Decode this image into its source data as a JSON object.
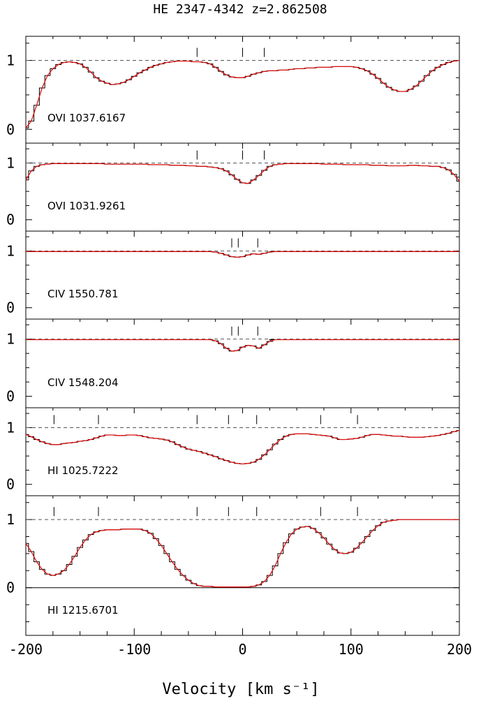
{
  "chart_data": {
    "type": "line",
    "title": "HE 2347-4342 z=2.862508",
    "xlabel": "Velocity [km s⁻¹]",
    "xlim": [
      -200,
      200
    ],
    "xticks": [
      -200,
      -100,
      0,
      100,
      200
    ],
    "continuum_level": 1,
    "colors": {
      "data": "#000000",
      "model": "#dd1111",
      "continuum": "#555555"
    },
    "panels": [
      {
        "label": "OVI 1037.6167",
        "ylim": [
          -0.2,
          1.35
        ],
        "yticks": [
          0,
          1
        ],
        "component_marks": [
          -42,
          0,
          20
        ],
        "x": [
          -200,
          -195,
          -190,
          -185,
          -180,
          -175,
          -170,
          -165,
          -160,
          -155,
          -150,
          -145,
          -140,
          -135,
          -130,
          -125,
          -120,
          -115,
          -110,
          -105,
          -100,
          -95,
          -90,
          -85,
          -80,
          -75,
          -70,
          -65,
          -60,
          -55,
          -50,
          -45,
          -40,
          -35,
          -30,
          -25,
          -20,
          -15,
          -10,
          -5,
          0,
          5,
          10,
          15,
          20,
          25,
          30,
          35,
          40,
          45,
          50,
          55,
          60,
          65,
          70,
          75,
          80,
          85,
          90,
          95,
          100,
          105,
          110,
          115,
          120,
          125,
          130,
          135,
          140,
          145,
          150,
          155,
          160,
          165,
          170,
          175,
          180,
          185,
          190,
          195,
          200
        ],
        "y": [
          0.02,
          0.12,
          0.35,
          0.6,
          0.78,
          0.88,
          0.94,
          0.97,
          0.98,
          0.97,
          0.95,
          0.9,
          0.83,
          0.75,
          0.7,
          0.67,
          0.65,
          0.66,
          0.68,
          0.72,
          0.77,
          0.82,
          0.86,
          0.9,
          0.93,
          0.95,
          0.97,
          0.98,
          0.99,
          0.99,
          0.99,
          0.98,
          0.98,
          0.97,
          0.95,
          0.9,
          0.84,
          0.79,
          0.76,
          0.75,
          0.75,
          0.77,
          0.8,
          0.82,
          0.84,
          0.85,
          0.85,
          0.86,
          0.86,
          0.87,
          0.88,
          0.88,
          0.89,
          0.89,
          0.9,
          0.9,
          0.9,
          0.91,
          0.91,
          0.91,
          0.91,
          0.9,
          0.88,
          0.85,
          0.8,
          0.74,
          0.67,
          0.61,
          0.57,
          0.55,
          0.55,
          0.58,
          0.63,
          0.7,
          0.78,
          0.85,
          0.9,
          0.94,
          0.97,
          0.99,
          1.0
        ]
      },
      {
        "label": "OVI 1031.9261",
        "ylim": [
          -0.2,
          1.35
        ],
        "yticks": [
          0,
          1
        ],
        "component_marks": [
          -42,
          0,
          20
        ],
        "x": [
          -200,
          -195,
          -190,
          -185,
          -180,
          -175,
          -170,
          -165,
          -160,
          -155,
          -150,
          -145,
          -140,
          -135,
          -130,
          -125,
          -120,
          -115,
          -110,
          -105,
          -100,
          -95,
          -90,
          -85,
          -80,
          -75,
          -70,
          -65,
          -60,
          -55,
          -50,
          -45,
          -40,
          -35,
          -30,
          -25,
          -20,
          -15,
          -10,
          -5,
          0,
          5,
          10,
          15,
          20,
          25,
          30,
          35,
          40,
          45,
          50,
          55,
          60,
          65,
          70,
          75,
          80,
          85,
          90,
          95,
          100,
          105,
          110,
          115,
          120,
          125,
          130,
          135,
          140,
          145,
          150,
          155,
          160,
          165,
          170,
          175,
          180,
          185,
          190,
          195,
          200
        ],
        "y": [
          0.7,
          0.86,
          0.94,
          0.97,
          0.98,
          0.99,
          0.99,
          0.99,
          0.99,
          0.99,
          0.99,
          0.99,
          0.99,
          0.99,
          0.99,
          0.98,
          0.98,
          0.98,
          0.98,
          0.98,
          0.98,
          0.98,
          0.98,
          0.97,
          0.97,
          0.97,
          0.97,
          0.96,
          0.96,
          0.96,
          0.95,
          0.95,
          0.94,
          0.94,
          0.93,
          0.92,
          0.9,
          0.86,
          0.79,
          0.71,
          0.65,
          0.64,
          0.7,
          0.78,
          0.87,
          0.94,
          0.97,
          0.98,
          0.99,
          0.99,
          0.99,
          0.99,
          0.99,
          0.99,
          0.99,
          0.98,
          0.98,
          0.98,
          0.98,
          0.97,
          0.97,
          0.97,
          0.97,
          0.97,
          0.96,
          0.96,
          0.96,
          0.95,
          0.95,
          0.95,
          0.95,
          0.96,
          0.96,
          0.95,
          0.95,
          0.94,
          0.94,
          0.92,
          0.88,
          0.8,
          0.68
        ]
      },
      {
        "label": "CIV 1550.781",
        "ylim": [
          -0.2,
          1.35
        ],
        "yticks": [
          0,
          1
        ],
        "component_marks": [
          -10,
          -4,
          14
        ],
        "x": [
          -200,
          -190,
          -180,
          -170,
          -160,
          -150,
          -140,
          -130,
          -120,
          -110,
          -100,
          -90,
          -80,
          -70,
          -60,
          -50,
          -40,
          -30,
          -25,
          -20,
          -15,
          -10,
          -5,
          0,
          5,
          10,
          15,
          20,
          25,
          30,
          40,
          50,
          60,
          70,
          80,
          90,
          100,
          110,
          120,
          130,
          140,
          150,
          160,
          170,
          180,
          190,
          200
        ],
        "y": [
          0.99,
          0.99,
          0.99,
          0.99,
          0.99,
          0.99,
          0.99,
          0.99,
          0.99,
          0.99,
          0.99,
          0.99,
          0.99,
          0.99,
          0.99,
          0.99,
          0.99,
          0.99,
          0.98,
          0.96,
          0.93,
          0.9,
          0.89,
          0.9,
          0.93,
          0.95,
          0.94,
          0.96,
          0.98,
          0.99,
          0.99,
          0.99,
          0.99,
          0.99,
          0.99,
          0.99,
          0.99,
          0.99,
          0.99,
          0.99,
          0.99,
          0.99,
          0.99,
          0.99,
          0.99,
          0.99,
          0.99
        ]
      },
      {
        "label": "CIV 1548.204",
        "ylim": [
          -0.2,
          1.35
        ],
        "yticks": [
          0,
          1
        ],
        "component_marks": [
          -10,
          -4,
          14
        ],
        "x": [
          -200,
          -190,
          -180,
          -170,
          -160,
          -150,
          -140,
          -130,
          -120,
          -110,
          -100,
          -90,
          -80,
          -70,
          -60,
          -50,
          -40,
          -30,
          -25,
          -20,
          -15,
          -10,
          -5,
          0,
          5,
          10,
          15,
          20,
          25,
          30,
          40,
          50,
          60,
          70,
          80,
          90,
          100,
          110,
          120,
          130,
          140,
          150,
          160,
          170,
          180,
          190,
          200
        ],
        "y": [
          0.99,
          0.99,
          0.99,
          0.99,
          0.99,
          0.99,
          0.99,
          0.99,
          0.99,
          0.99,
          0.99,
          0.99,
          0.99,
          0.99,
          0.99,
          0.99,
          0.99,
          0.99,
          0.97,
          0.92,
          0.84,
          0.79,
          0.8,
          0.86,
          0.89,
          0.88,
          0.84,
          0.9,
          0.96,
          0.99,
          0.99,
          0.99,
          0.99,
          0.99,
          0.99,
          0.99,
          0.99,
          0.99,
          0.99,
          0.99,
          0.99,
          0.99,
          0.99,
          0.99,
          0.99,
          0.99,
          0.99
        ]
      },
      {
        "label": "HI 1025.7222",
        "ylim": [
          -0.2,
          1.35
        ],
        "yticks": [
          0,
          1
        ],
        "component_marks": [
          -174,
          -133,
          -42,
          -13,
          13,
          72,
          106
        ],
        "x": [
          -200,
          -195,
          -190,
          -185,
          -180,
          -175,
          -170,
          -165,
          -160,
          -155,
          -150,
          -145,
          -140,
          -135,
          -130,
          -125,
          -120,
          -115,
          -110,
          -105,
          -100,
          -95,
          -90,
          -85,
          -80,
          -75,
          -70,
          -65,
          -60,
          -55,
          -50,
          -45,
          -40,
          -35,
          -30,
          -25,
          -20,
          -15,
          -10,
          -5,
          0,
          5,
          10,
          15,
          20,
          25,
          30,
          35,
          40,
          45,
          50,
          55,
          60,
          65,
          70,
          75,
          80,
          85,
          90,
          95,
          100,
          105,
          110,
          115,
          120,
          125,
          130,
          135,
          140,
          145,
          150,
          155,
          160,
          165,
          170,
          175,
          180,
          185,
          190,
          195,
          200
        ],
        "y": [
          0.88,
          0.84,
          0.79,
          0.75,
          0.72,
          0.7,
          0.7,
          0.72,
          0.73,
          0.74,
          0.76,
          0.77,
          0.79,
          0.82,
          0.85,
          0.87,
          0.87,
          0.86,
          0.86,
          0.87,
          0.87,
          0.86,
          0.84,
          0.82,
          0.81,
          0.8,
          0.78,
          0.75,
          0.7,
          0.66,
          0.62,
          0.6,
          0.58,
          0.55,
          0.52,
          0.49,
          0.45,
          0.42,
          0.39,
          0.37,
          0.36,
          0.37,
          0.39,
          0.44,
          0.52,
          0.61,
          0.71,
          0.79,
          0.85,
          0.88,
          0.89,
          0.89,
          0.89,
          0.88,
          0.87,
          0.86,
          0.85,
          0.82,
          0.79,
          0.79,
          0.8,
          0.81,
          0.83,
          0.86,
          0.88,
          0.88,
          0.87,
          0.86,
          0.85,
          0.85,
          0.84,
          0.83,
          0.83,
          0.83,
          0.84,
          0.85,
          0.86,
          0.88,
          0.9,
          0.93,
          0.95
        ]
      },
      {
        "label": "HI 1215.6701",
        "ylim": [
          -0.7,
          1.35
        ],
        "yticks": [
          0,
          1
        ],
        "component_marks": [
          -174,
          -133,
          -42,
          -13,
          13,
          72,
          106
        ],
        "x": [
          -200,
          -195,
          -190,
          -185,
          -180,
          -175,
          -170,
          -165,
          -160,
          -155,
          -150,
          -145,
          -140,
          -135,
          -130,
          -125,
          -120,
          -115,
          -110,
          -105,
          -100,
          -95,
          -90,
          -85,
          -80,
          -75,
          -70,
          -65,
          -60,
          -55,
          -50,
          -45,
          -40,
          -35,
          -30,
          -25,
          -20,
          -15,
          -10,
          -5,
          0,
          5,
          10,
          15,
          20,
          25,
          30,
          35,
          40,
          45,
          50,
          55,
          60,
          65,
          70,
          75,
          80,
          85,
          90,
          95,
          100,
          105,
          110,
          115,
          120,
          125,
          130,
          135,
          140,
          145,
          150,
          155,
          160,
          165,
          170,
          175,
          180,
          185,
          190,
          195,
          200
        ],
        "y": [
          0.65,
          0.53,
          0.38,
          0.27,
          0.2,
          0.18,
          0.2,
          0.25,
          0.34,
          0.46,
          0.59,
          0.7,
          0.78,
          0.82,
          0.84,
          0.85,
          0.85,
          0.85,
          0.86,
          0.86,
          0.86,
          0.86,
          0.84,
          0.8,
          0.72,
          0.62,
          0.5,
          0.38,
          0.27,
          0.18,
          0.11,
          0.06,
          0.03,
          0.02,
          0.02,
          0.01,
          0.01,
          0.01,
          0.01,
          0.01,
          0.01,
          0.01,
          0.02,
          0.04,
          0.09,
          0.18,
          0.32,
          0.5,
          0.66,
          0.79,
          0.86,
          0.89,
          0.9,
          0.87,
          0.81,
          0.73,
          0.64,
          0.56,
          0.51,
          0.5,
          0.52,
          0.58,
          0.66,
          0.75,
          0.84,
          0.91,
          0.96,
          0.98,
          0.99,
          1.0,
          1.0,
          1.0,
          1.0,
          1.0,
          1.0,
          1.0,
          1.0,
          1.0,
          1.0,
          1.0,
          1.0
        ]
      }
    ]
  }
}
